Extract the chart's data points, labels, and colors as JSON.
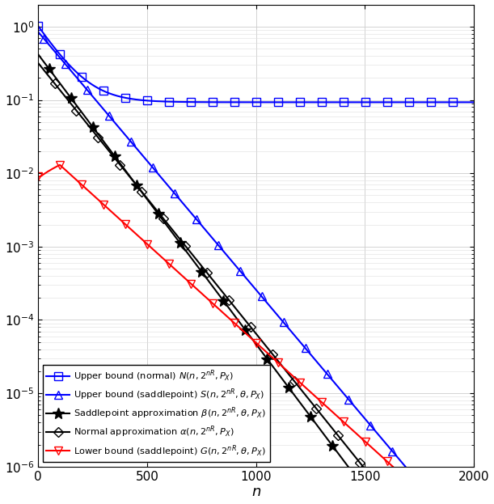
{
  "title": "",
  "xlabel": "$n$",
  "xlim": [
    0,
    2000
  ],
  "ylim_log": [
    1e-06,
    2.0
  ],
  "xticks": [
    0,
    500,
    1000,
    1500,
    2000
  ],
  "colors": {
    "upper_normal": "#0000FF",
    "upper_saddle": "#0000FF",
    "saddle_approx": "#000000",
    "normal_approx": "#000000",
    "lower_saddle": "#FF0000"
  },
  "legend_labels": [
    "Upper bound (normal) $N(n, 2^{nR}, P_X)$",
    "Upper bound (saddlepoint) $S(n, 2^{nR}, \\theta, P_X)$",
    "Saddlepoint approximation $\\beta(n, 2^{nR}, \\theta, P_X)$",
    "Normal approximation $\\alpha(n, 2^{nR}, P_X)$",
    "Lower bound (saddlepoint) $G(n, 2^{nR}, \\theta, P_X)$"
  ]
}
